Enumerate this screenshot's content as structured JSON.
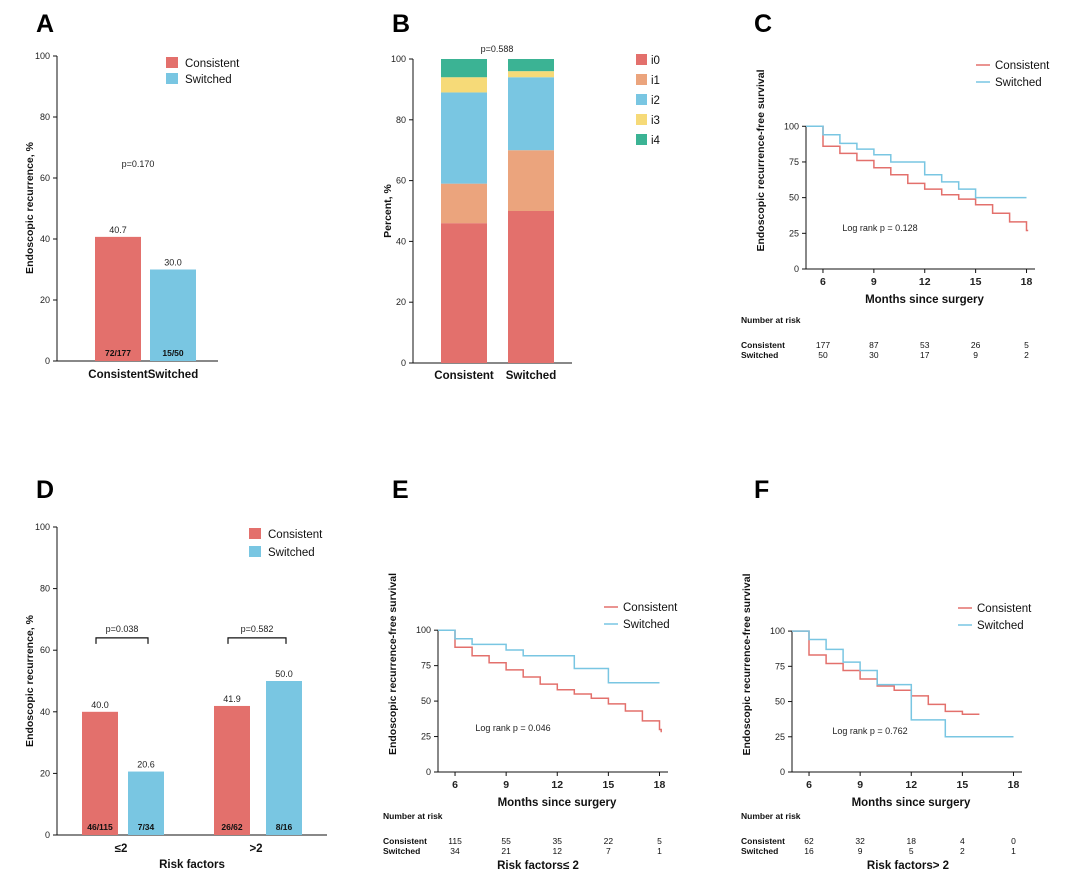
{
  "colors": {
    "consistent": "#e3706c",
    "switched": "#79c6e2",
    "i0": "#e3706c",
    "i1": "#eba47d",
    "i2": "#79c6e2",
    "i3": "#f6da78",
    "i4": "#3bb394"
  },
  "panels": {
    "A": "A",
    "B": "B",
    "C": "C",
    "D": "D",
    "E": "E",
    "F": "F"
  },
  "chart_data": [
    {
      "id": "A",
      "type": "bar",
      "ylabel": "Endoscopic recurrence, %",
      "xlabel": "",
      "ylim": [
        0,
        100
      ],
      "yticks": [
        0,
        20,
        40,
        60,
        80,
        100
      ],
      "categories": [
        "Consistent",
        "Switched"
      ],
      "values": [
        40.7,
        30.0
      ],
      "value_labels": [
        "40.7",
        "30.0"
      ],
      "counts": [
        "72/177",
        "15/50"
      ],
      "legend": [
        "Consistent",
        "Switched"
      ],
      "annotation": "p=0.170"
    },
    {
      "id": "B",
      "type": "bar",
      "stacked": true,
      "ylabel": "Percent, %",
      "ylim": [
        0,
        100
      ],
      "yticks": [
        0,
        20,
        40,
        60,
        80,
        100
      ],
      "categories": [
        "Consistent",
        "Switched"
      ],
      "series": [
        {
          "name": "i0",
          "values": [
            46,
            50
          ]
        },
        {
          "name": "i1",
          "values": [
            13,
            20
          ]
        },
        {
          "name": "i2",
          "values": [
            30,
            24
          ]
        },
        {
          "name": "i3",
          "values": [
            5,
            2
          ]
        },
        {
          "name": "i4",
          "values": [
            6,
            4
          ]
        }
      ],
      "annotation": "p=0.588"
    },
    {
      "id": "C",
      "type": "line",
      "step": true,
      "ylabel": "Endoscopic recurrence-free survival",
      "xlabel": "Months since surgery",
      "xlim": [
        5,
        18.5
      ],
      "ylim": [
        0,
        110
      ],
      "xticks": [
        6,
        9,
        12,
        15,
        18
      ],
      "yticks": [
        0,
        25,
        50,
        75,
        100
      ],
      "series": [
        {
          "name": "Consistent",
          "x": [
            5,
            6,
            7,
            8,
            9,
            10,
            11,
            12,
            13,
            14,
            15,
            16,
            17,
            18,
            18.1
          ],
          "y": [
            100,
            86,
            81,
            76,
            71,
            66,
            60,
            56,
            52,
            49,
            45,
            39,
            33,
            27,
            27
          ]
        },
        {
          "name": "Switched",
          "x": [
            5,
            6,
            7,
            8,
            9,
            10,
            12,
            13,
            14,
            15,
            18
          ],
          "y": [
            100,
            94,
            88,
            84,
            80,
            75,
            66,
            61,
            56,
            50,
            50
          ]
        }
      ],
      "annotation": "Log rank p = 0.128",
      "risk_title": "Number at risk",
      "risk_table": [
        {
          "name": "Consistent",
          "values": [
            "177",
            "87",
            "53",
            "26",
            "5"
          ]
        },
        {
          "name": "Switched",
          "values": [
            "50",
            "30",
            "17",
            "9",
            "2"
          ]
        }
      ]
    },
    {
      "id": "D",
      "type": "bar",
      "ylabel": "Endoscopic recurrence, %",
      "xlabel": "Risk factors",
      "ylim": [
        0,
        100
      ],
      "yticks": [
        0,
        20,
        40,
        60,
        80,
        100
      ],
      "categories": [
        "≤2",
        ">2"
      ],
      "series": [
        {
          "name": "Consistent",
          "values": [
            40.0,
            41.9
          ],
          "value_labels": [
            "40.0",
            "41.9"
          ],
          "counts": [
            "46/115",
            "26/62"
          ]
        },
        {
          "name": "Switched",
          "values": [
            20.6,
            50.0
          ],
          "value_labels": [
            "20.6",
            "50.0"
          ],
          "counts": [
            "7/34",
            "8/16"
          ]
        }
      ],
      "brackets": [
        {
          "label": "p=0.038",
          "level": 64
        },
        {
          "label": "p=0.582",
          "level": 64
        }
      ]
    },
    {
      "id": "E",
      "type": "line",
      "step": true,
      "ylabel": "Endoscopic recurrence-free survival",
      "xlabel": "Months since surgery",
      "xlim": [
        5,
        18.5
      ],
      "ylim": [
        0,
        110
      ],
      "xticks": [
        6,
        9,
        12,
        15,
        18
      ],
      "yticks": [
        0,
        25,
        50,
        75,
        100
      ],
      "series": [
        {
          "name": "Consistent",
          "x": [
            5,
            6,
            7,
            8,
            9,
            10,
            11,
            12,
            13,
            14,
            15,
            16,
            17,
            18,
            18.1
          ],
          "y": [
            100,
            88,
            82,
            77,
            72,
            67,
            62,
            58,
            55,
            52,
            48,
            43,
            36,
            30,
            28
          ]
        },
        {
          "name": "Switched",
          "x": [
            5,
            6,
            7,
            9,
            10,
            13,
            15,
            18
          ],
          "y": [
            100,
            94,
            90,
            86,
            82,
            73,
            63,
            63
          ]
        }
      ],
      "annotation": "Log rank p = 0.046",
      "caption": "Risk factors≤ 2",
      "risk_title": "Number at risk",
      "risk_table": [
        {
          "name": "Consistent",
          "values": [
            "115",
            "55",
            "35",
            "22",
            "5"
          ]
        },
        {
          "name": "Switched",
          "values": [
            "34",
            "21",
            "12",
            "7",
            "1"
          ]
        }
      ]
    },
    {
      "id": "F",
      "type": "line",
      "step": true,
      "ylabel": "Endoscopic recurrence-free survival",
      "xlabel": "Months since surgery",
      "xlim": [
        5,
        18.5
      ],
      "ylim": [
        0,
        110
      ],
      "xticks": [
        6,
        9,
        12,
        15,
        18
      ],
      "yticks": [
        0,
        25,
        50,
        75,
        100
      ],
      "series": [
        {
          "name": "Consistent",
          "x": [
            5,
            6,
            7,
            8,
            9,
            10,
            11,
            12,
            13,
            14,
            15,
            16
          ],
          "y": [
            100,
            83,
            77,
            72,
            66,
            61,
            58,
            54,
            48,
            43,
            41,
            41
          ]
        },
        {
          "name": "Switched",
          "x": [
            5,
            6,
            7,
            8,
            9,
            10,
            12,
            14,
            18
          ],
          "y": [
            100,
            94,
            87,
            78,
            72,
            62,
            37,
            25,
            25
          ]
        }
      ],
      "annotation": "Log rank p = 0.762",
      "caption": "Risk factors> 2",
      "risk_title": "Number at risk",
      "risk_table": [
        {
          "name": "Consistent",
          "values": [
            "62",
            "32",
            "18",
            "4",
            "0"
          ]
        },
        {
          "name": "Switched",
          "values": [
            "16",
            "9",
            "5",
            "2",
            "1"
          ]
        }
      ]
    }
  ]
}
